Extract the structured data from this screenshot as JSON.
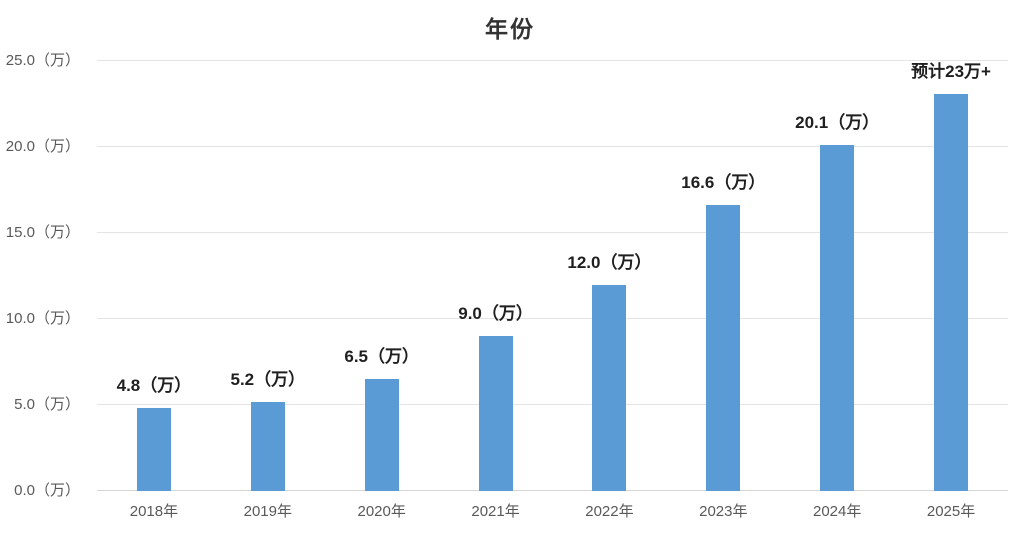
{
  "colors": {
    "bar": "#5B9BD5",
    "gridline": "#E4E4E4",
    "baseline": "#D5D5D5",
    "axis_label": "#595959",
    "data_label": "#1F1F1F",
    "title": "#333333"
  },
  "chart_data": {
    "type": "bar",
    "title": "年份",
    "xlabel": "",
    "ylabel": "",
    "categories": [
      "2018年",
      "2019年",
      "2020年",
      "2021年",
      "2022年",
      "2023年",
      "2024年",
      "2025年"
    ],
    "values": [
      4.8,
      5.2,
      6.5,
      9.0,
      12.0,
      16.6,
      20.1,
      23.1
    ],
    "data_labels": [
      "4.8（万）",
      "5.2（万）",
      "6.5（万）",
      "9.0（万）",
      "12.0（万）",
      "16.6（万）",
      "20.1（万）",
      "预计23万+"
    ],
    "y_ticks": [
      {
        "value": 0,
        "label": "0.0（万）"
      },
      {
        "value": 5,
        "label": "5.0（万）"
      },
      {
        "value": 10,
        "label": "10.0（万）"
      },
      {
        "value": 15,
        "label": "15.0（万）"
      },
      {
        "value": 20,
        "label": "20.0（万）"
      },
      {
        "value": 25,
        "label": "25.0（万）"
      }
    ],
    "ylim": [
      0,
      25
    ],
    "grid": true,
    "legend": "none",
    "bar_color": "#5B9BD5"
  }
}
